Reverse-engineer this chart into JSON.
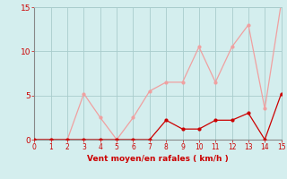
{
  "x": [
    0,
    1,
    2,
    3,
    4,
    5,
    6,
    7,
    8,
    9,
    10,
    11,
    12,
    13,
    14,
    15
  ],
  "y_rafales": [
    0,
    0,
    0,
    5.2,
    2.5,
    0,
    2.5,
    5.5,
    6.5,
    6.5,
    10.5,
    6.5,
    10.5,
    13.0,
    3.5,
    15.5
  ],
  "y_moyen": [
    0,
    0,
    0,
    0,
    0,
    0,
    0,
    0,
    2.2,
    1.2,
    1.2,
    2.2,
    2.2,
    3.0,
    0.0,
    5.2
  ],
  "color_rafales": "#F0A0A0",
  "color_moyen": "#CC0000",
  "xlabel": "Vent moyen/en rafales ( km/h )",
  "xlabel_color": "#CC0000",
  "background_color": "#D4EEEE",
  "grid_color": "#A8CCCC",
  "tick_color": "#CC0000",
  "xlim": [
    0,
    15
  ],
  "ylim": [
    0,
    15
  ],
  "yticks": [
    0,
    5,
    10,
    15
  ],
  "xticks": [
    0,
    1,
    2,
    3,
    4,
    5,
    6,
    7,
    8,
    9,
    10,
    11,
    12,
    13,
    14,
    15
  ],
  "marker_size": 2.0,
  "line_width": 0.9
}
